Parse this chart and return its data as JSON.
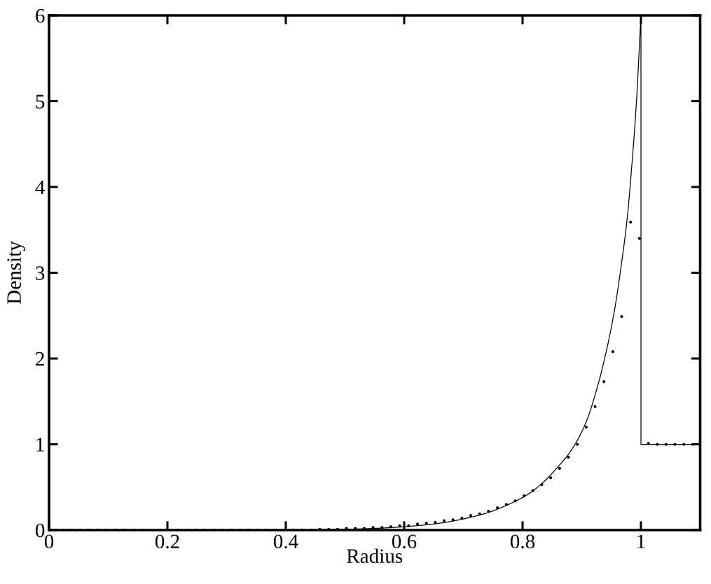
{
  "chart_data": {
    "type": "line",
    "xlabel": "Radius",
    "ylabel": "Density",
    "xlim": [
      0,
      1.1
    ],
    "ylim": [
      0,
      6
    ],
    "xticks": [
      0,
      0.2,
      0.4,
      0.6,
      0.8,
      1
    ],
    "yticks": [
      0,
      1,
      2,
      3,
      4,
      5,
      6
    ],
    "series": [
      {
        "color": "#000000",
        "marker": "none",
        "line_style": "solid",
        "x": [
          0,
          0.4,
          0.5,
          0.55,
          0.58,
          0.62,
          0.66,
          0.7,
          0.74,
          0.77,
          0.8,
          0.82,
          0.84,
          0.86,
          0.876,
          0.892,
          0.908,
          0.924,
          0.94,
          0.955,
          0.966,
          0.977,
          0.984,
          0.992,
          1.0,
          1.0,
          1.1
        ],
        "values": [
          0,
          0,
          0.01,
          0.02,
          0.03,
          0.05,
          0.08,
          0.13,
          0.2,
          0.28,
          0.38,
          0.47,
          0.59,
          0.74,
          0.87,
          1.04,
          1.27,
          1.61,
          2.04,
          2.55,
          3.05,
          3.65,
          4.2,
          4.95,
          6,
          1,
          1
        ]
      },
      {
        "type": "scatter",
        "color": "#000000",
        "marker": "circle",
        "x": [
          0.0075,
          0.0225,
          0.0375,
          0.0525,
          0.0675,
          0.0825,
          0.0975,
          0.1125,
          0.1275,
          0.1425,
          0.1575,
          0.1725,
          0.1875,
          0.2025,
          0.2175,
          0.2325,
          0.2475,
          0.2625,
          0.2775,
          0.2925,
          0.3075,
          0.3225,
          0.3375,
          0.3525,
          0.3675,
          0.3825,
          0.3975,
          0.4125,
          0.4275,
          0.4425,
          0.4575,
          0.4725,
          0.4875,
          0.5025,
          0.5175,
          0.5325,
          0.5475,
          0.5625,
          0.5775,
          0.5925,
          0.6075,
          0.6225,
          0.6375,
          0.6525,
          0.6675,
          0.6825,
          0.6975,
          0.7125,
          0.7275,
          0.7425,
          0.7575,
          0.7725,
          0.7875,
          0.8025,
          0.8175,
          0.8325,
          0.8475,
          0.8625,
          0.8775,
          0.8925,
          0.9075,
          0.9225,
          0.9375,
          0.9525,
          0.9675,
          0.9825,
          0.9975,
          1.0125,
          1.0275,
          1.0425,
          1.0575,
          1.0725,
          1.0875
        ],
        "values": [
          0,
          0,
          0,
          0,
          0,
          0,
          0,
          0,
          0,
          0,
          0,
          0,
          0,
          0,
          0,
          0,
          0,
          0,
          0,
          0,
          0,
          0,
          0,
          0,
          0,
          0,
          0,
          0,
          0,
          0,
          0.01,
          0.01,
          0.01,
          0.02,
          0.02,
          0.02,
          0.03,
          0.03,
          0.04,
          0.05,
          0.05,
          0.07,
          0.08,
          0.09,
          0.11,
          0.12,
          0.14,
          0.17,
          0.19,
          0.22,
          0.26,
          0.3,
          0.34,
          0.4,
          0.46,
          0.53,
          0.61,
          0.72,
          0.85,
          1.0,
          1.2,
          1.44,
          1.73,
          2.08,
          2.49,
          3.59,
          3.4,
          1.01,
          1,
          1,
          1,
          1,
          1
        ]
      }
    ]
  }
}
